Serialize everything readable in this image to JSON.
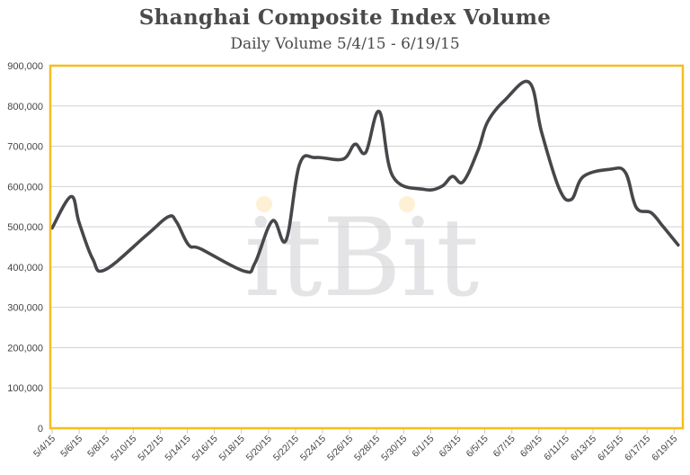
{
  "chart_data": {
    "type": "line",
    "title": "Shanghai Composite Index Volume",
    "subtitle": "Daily Volume 5/4/15 - 6/19/15",
    "xlabel": "",
    "ylabel": "",
    "ylim": [
      0,
      900000
    ],
    "yticks": [
      "0",
      "100,000",
      "200,000",
      "300,000",
      "400,000",
      "500,000",
      "600,000",
      "700,000",
      "800,000",
      "900,000"
    ],
    "xticks": [
      "5/4/15",
      "5/6/15",
      "5/8/15",
      "5/10/15",
      "5/12/15",
      "5/14/15",
      "5/16/15",
      "5/18/15",
      "5/20/15",
      "5/22/15",
      "5/24/15",
      "5/26/15",
      "5/28/15",
      "5/30/15",
      "6/1/15",
      "6/3/15",
      "6/5/15",
      "6/7/15",
      "6/9/15",
      "6/11/15",
      "6/13/15",
      "6/15/15",
      "6/17/15",
      "6/19/15"
    ],
    "grid": true,
    "legend": null,
    "watermark": "itBit",
    "series": [
      {
        "name": "Daily Volume",
        "color": "#47474b",
        "points": [
          {
            "x": "5/4/15",
            "day": 0,
            "y": 497000
          },
          {
            "x": "5/5/15",
            "day": 1.4,
            "y": 575000
          },
          {
            "x": "5/6/15",
            "day": 2,
            "y": 510000
          },
          {
            "x": "5/7/15",
            "day": 3,
            "y": 420000
          },
          {
            "x": "5/8/15",
            "day": 3.9,
            "y": 393000
          },
          {
            "x": "5/11/15",
            "day": 7,
            "y": 480000
          },
          {
            "x": "5/12/15",
            "day": 8.6,
            "y": 525000
          },
          {
            "x": "5/13/15",
            "day": 9.2,
            "y": 512000
          },
          {
            "x": "5/14/15",
            "day": 10.1,
            "y": 455000
          },
          {
            "x": "5/15/15",
            "day": 11,
            "y": 445000
          },
          {
            "x": "5/18/15",
            "day": 14.2,
            "y": 390000
          },
          {
            "x": "5/19/15",
            "day": 15,
            "y": 410000
          },
          {
            "x": "5/20/15",
            "day": 16.3,
            "y": 515000
          },
          {
            "x": "5/21/15",
            "day": 17.3,
            "y": 467000
          },
          {
            "x": "5/22/15",
            "day": 18.3,
            "y": 655000
          },
          {
            "x": "5/24/15",
            "day": 19.5,
            "y": 672000
          },
          {
            "x": "5/25/15",
            "day": 21.5,
            "y": 668000
          },
          {
            "x": "5/26/15",
            "day": 22.4,
            "y": 705000
          },
          {
            "x": "5/27/15",
            "day": 23.2,
            "y": 685000
          },
          {
            "x": "5/28/15",
            "day": 24.2,
            "y": 786000
          },
          {
            "x": "5/29/15",
            "day": 25.2,
            "y": 625000
          },
          {
            "x": "6/1/15",
            "day": 27.5,
            "y": 593000
          },
          {
            "x": "6/2/15",
            "day": 28.8,
            "y": 600000
          },
          {
            "x": "6/3/15",
            "day": 29.6,
            "y": 625000
          },
          {
            "x": "6/4/15",
            "day": 30.4,
            "y": 612000
          },
          {
            "x": "6/5/15",
            "day": 31.5,
            "y": 690000
          },
          {
            "x": "6/6/15",
            "day": 32.2,
            "y": 760000
          },
          {
            "x": "6/7/15",
            "day": 33.5,
            "y": 815000
          },
          {
            "x": "6/8/15",
            "day": 35.3,
            "y": 858000
          },
          {
            "x": "6/9/15",
            "day": 36.2,
            "y": 735000
          },
          {
            "x": "6/10/15",
            "day": 37.5,
            "y": 595000
          },
          {
            "x": "6/11/15",
            "day": 38.4,
            "y": 568000
          },
          {
            "x": "6/12/15",
            "day": 39.3,
            "y": 625000
          },
          {
            "x": "6/14/15",
            "day": 41.3,
            "y": 643000
          },
          {
            "x": "6/15/15",
            "day": 42.4,
            "y": 635000
          },
          {
            "x": "6/16/15",
            "day": 43.2,
            "y": 548000
          },
          {
            "x": "6/17/15",
            "day": 44.3,
            "y": 535000
          },
          {
            "x": "6/18/15",
            "day": 45.2,
            "y": 500000
          },
          {
            "x": "6/19/15",
            "day": 46.3,
            "y": 455000
          }
        ]
      }
    ]
  },
  "style": {
    "frame_color": "#f5bd1f",
    "grid_color": "#d2d2d2",
    "line_color": "#47474b",
    "watermark_color": "#e4e4e6",
    "watermark_dot_color": "#fdf0d4"
  }
}
